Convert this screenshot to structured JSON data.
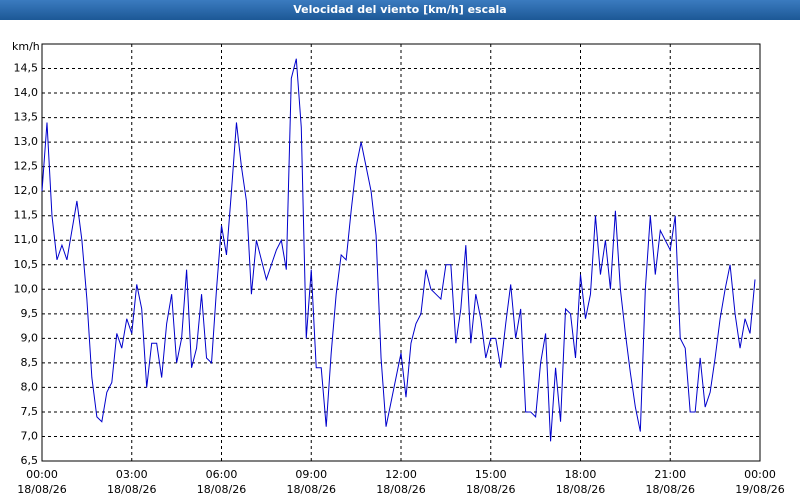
{
  "chart_data": {
    "type": "line",
    "title": "Velocidad del viento [km/h] escala",
    "y_label": "km/h",
    "color": "#0000cc",
    "grid": true,
    "ylim": [
      6.5,
      15
    ],
    "yticks": [
      {
        "value": 6.5,
        "label": "6,5"
      },
      {
        "value": 7,
        "label": "7,0"
      },
      {
        "value": 7.5,
        "label": "7,5"
      },
      {
        "value": 8,
        "label": "8,0"
      },
      {
        "value": 8.5,
        "label": "8,5"
      },
      {
        "value": 9,
        "label": "9,0"
      },
      {
        "value": 9.5,
        "label": "9,5"
      },
      {
        "value": 10,
        "label": "10,0"
      },
      {
        "value": 10.5,
        "label": "10,5"
      },
      {
        "value": 11,
        "label": "11,0"
      },
      {
        "value": 11.5,
        "label": "11,5"
      },
      {
        "value": 12,
        "label": "12,0"
      },
      {
        "value": 12.5,
        "label": "12,5"
      },
      {
        "value": 13,
        "label": "13,0"
      },
      {
        "value": 13.5,
        "label": "13,5"
      },
      {
        "value": 14,
        "label": "14,0"
      },
      {
        "value": 14.5,
        "label": "14,5"
      }
    ],
    "xlim": [
      "18/08/26 00:00",
      "19/08/26 00:00"
    ],
    "xticks": [
      {
        "value": "18/08/26 00:00",
        "label": [
          "00:00",
          "18/08/26"
        ]
      },
      {
        "value": "18/08/26 03:00",
        "label": [
          "03:00",
          "18/08/26"
        ]
      },
      {
        "value": "18/08/26 06:00",
        "label": [
          "06:00",
          "18/08/26"
        ]
      },
      {
        "value": "18/08/26 09:00",
        "label": [
          "09:00",
          "18/08/26"
        ]
      },
      {
        "value": "18/08/26 12:00",
        "label": [
          "12:00",
          "18/08/26"
        ]
      },
      {
        "value": "18/08/26 15:00",
        "label": [
          "15:00",
          "18/08/26"
        ]
      },
      {
        "value": "18/08/26 18:00",
        "label": [
          "18:00",
          "18/08/26"
        ]
      },
      {
        "value": "18/08/26 21:00",
        "label": [
          "21:00",
          "18/08/26"
        ]
      },
      {
        "value": "19/08/26 00:00",
        "label": [
          "00:00",
          "19/08/26"
        ]
      }
    ],
    "x": [
      "18/08/26 00:00",
      "18/08/26 00:10",
      "18/08/26 00:20",
      "18/08/26 00:30",
      "18/08/26 00:40",
      "18/08/26 00:50",
      "18/08/26 01:00",
      "18/08/26 01:10",
      "18/08/26 01:20",
      "18/08/26 01:30",
      "18/08/26 01:40",
      "18/08/26 01:50",
      "18/08/26 02:00",
      "18/08/26 02:10",
      "18/08/26 02:20",
      "18/08/26 02:30",
      "18/08/26 02:40",
      "18/08/26 02:50",
      "18/08/26 03:00",
      "18/08/26 03:10",
      "18/08/26 03:20",
      "18/08/26 03:30",
      "18/08/26 03:40",
      "18/08/26 03:50",
      "18/08/26 04:00",
      "18/08/26 04:10",
      "18/08/26 04:20",
      "18/08/26 04:30",
      "18/08/26 04:40",
      "18/08/26 04:50",
      "18/08/26 05:00",
      "18/08/26 05:10",
      "18/08/26 05:20",
      "18/08/26 05:30",
      "18/08/26 05:40",
      "18/08/26 05:50",
      "18/08/26 06:00",
      "18/08/26 06:10",
      "18/08/26 06:20",
      "18/08/26 06:30",
      "18/08/26 06:40",
      "18/08/26 06:50",
      "18/08/26 07:00",
      "18/08/26 07:10",
      "18/08/26 07:20",
      "18/08/26 07:30",
      "18/08/26 07:40",
      "18/08/26 07:50",
      "18/08/26 08:00",
      "18/08/26 08:10",
      "18/08/26 08:20",
      "18/08/26 08:30",
      "18/08/26 08:40",
      "18/08/26 08:50",
      "18/08/26 09:00",
      "18/08/26 09:10",
      "18/08/26 09:20",
      "18/08/26 09:30",
      "18/08/26 09:40",
      "18/08/26 09:50",
      "18/08/26 10:00",
      "18/08/26 10:10",
      "18/08/26 10:20",
      "18/08/26 10:30",
      "18/08/26 10:40",
      "18/08/26 10:50",
      "18/08/26 11:00",
      "18/08/26 11:10",
      "18/08/26 11:20",
      "18/08/26 11:30",
      "18/08/26 11:40",
      "18/08/26 11:50",
      "18/08/26 12:00",
      "18/08/26 12:10",
      "18/08/26 12:20",
      "18/08/26 12:30",
      "18/08/26 12:40",
      "18/08/26 12:50",
      "18/08/26 13:00",
      "18/08/26 13:10",
      "18/08/26 13:20",
      "18/08/26 13:30",
      "18/08/26 13:40",
      "18/08/26 13:50",
      "18/08/26 14:00",
      "18/08/26 14:10",
      "18/08/26 14:20",
      "18/08/26 14:30",
      "18/08/26 14:40",
      "18/08/26 14:50",
      "18/08/26 15:00",
      "18/08/26 15:10",
      "18/08/26 15:20",
      "18/08/26 15:30",
      "18/08/26 15:40",
      "18/08/26 15:50",
      "18/08/26 16:00",
      "18/08/26 16:10",
      "18/08/26 16:20",
      "18/08/26 16:30",
      "18/08/26 16:40",
      "18/08/26 16:50",
      "18/08/26 17:00",
      "18/08/26 17:10",
      "18/08/26 17:20",
      "18/08/26 17:30",
      "18/08/26 17:40",
      "18/08/26 17:50",
      "18/08/26 18:00",
      "18/08/26 18:10",
      "18/08/26 18:20",
      "18/08/26 18:30",
      "18/08/26 18:40",
      "18/08/26 18:50",
      "18/08/26 19:00",
      "18/08/26 19:10",
      "18/08/26 19:20",
      "18/08/26 19:30",
      "18/08/26 19:40",
      "18/08/26 19:50",
      "18/08/26 20:00",
      "18/08/26 20:10",
      "18/08/26 20:20",
      "18/08/26 20:30",
      "18/08/26 20:40",
      "18/08/26 20:50",
      "18/08/26 21:00",
      "18/08/26 21:10",
      "18/08/26 21:20",
      "18/08/26 21:30",
      "18/08/26 21:40",
      "18/08/26 21:50",
      "18/08/26 22:00",
      "18/08/26 22:10",
      "18/08/26 22:20",
      "18/08/26 22:30",
      "18/08/26 22:40",
      "18/08/26 22:50",
      "18/08/26 23:00",
      "18/08/26 23:10",
      "18/08/26 23:20",
      "18/08/26 23:30",
      "18/08/26 23:40",
      "18/08/26 23:50"
    ],
    "values": [
      12.0,
      13.4,
      11.5,
      10.6,
      10.9,
      10.6,
      11.2,
      11.8,
      11.0,
      9.8,
      8.2,
      7.4,
      7.3,
      7.9,
      8.1,
      9.1,
      8.8,
      9.4,
      9.1,
      10.1,
      9.6,
      8.0,
      8.9,
      8.9,
      8.2,
      9.3,
      9.9,
      8.5,
      9.0,
      10.4,
      8.4,
      8.8,
      9.9,
      8.6,
      8.5,
      10.0,
      11.3,
      10.7,
      12.0,
      13.4,
      12.5,
      11.8,
      9.9,
      11.0,
      10.6,
      10.2,
      10.5,
      10.8,
      11.0,
      10.4,
      14.3,
      14.7,
      13.3,
      9.0,
      10.4,
      8.4,
      8.4,
      7.2,
      8.7,
      9.9,
      10.7,
      10.6,
      11.6,
      12.5,
      13.0,
      12.5,
      12.0,
      11.1,
      8.6,
      7.2,
      7.7,
      8.2,
      8.7,
      7.8,
      8.9,
      9.3,
      9.5,
      10.4,
      10.0,
      9.9,
      9.8,
      10.5,
      10.5,
      8.9,
      9.6,
      10.9,
      8.9,
      9.9,
      9.4,
      8.6,
      9.0,
      9.0,
      8.4,
      9.3,
      10.1,
      9.0,
      9.6,
      7.5,
      7.5,
      7.4,
      8.5,
      9.1,
      6.9,
      8.4,
      7.3,
      9.6,
      9.5,
      8.6,
      10.3,
      9.4,
      9.9,
      11.5,
      10.3,
      11.0,
      10.0,
      11.6,
      10.0,
      9.1,
      8.3,
      7.6,
      7.1,
      10.0,
      11.5,
      10.3,
      11.2,
      11.0,
      10.8,
      11.5,
      9.0,
      8.8,
      7.5,
      7.5,
      8.6,
      7.6,
      7.9,
      8.6,
      9.4,
      10.0,
      10.5,
      9.5,
      8.8,
      9.4,
      9.1,
      10.2
    ]
  }
}
